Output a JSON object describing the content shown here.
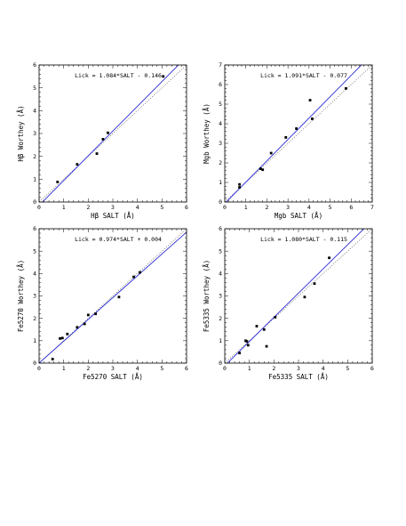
{
  "chart_data": [
    {
      "type": "scatter",
      "title": "",
      "xlabel": "Hβ SALT (Å)",
      "ylabel": "Hβ Worthey (Å)",
      "annotation": "Lick = 1.084*SALT - 0.146",
      "fit": {
        "slope": 1.084,
        "intercept": -0.146
      },
      "xlim": [
        0,
        6
      ],
      "ylim": [
        0,
        6
      ],
      "xticks": [
        0,
        1,
        2,
        3,
        4,
        5,
        6
      ],
      "yticks": [
        0,
        1,
        2,
        3,
        4,
        5,
        6
      ],
      "grid": false,
      "points": {
        "x": [
          0.75,
          1.55,
          2.35,
          2.6,
          2.8,
          5.05
        ],
        "y": [
          0.88,
          1.65,
          2.12,
          2.75,
          3.03,
          5.5
        ]
      }
    },
    {
      "type": "scatter",
      "title": "",
      "xlabel": "Mgb SALT (Å)",
      "ylabel": "Mgb Worthey (Å)",
      "annotation": "Lick = 1.091*SALT - 0.077",
      "fit": {
        "slope": 1.091,
        "intercept": -0.077
      },
      "xlim": [
        0,
        7
      ],
      "ylim": [
        0,
        7
      ],
      "xticks": [
        0,
        1,
        2,
        3,
        4,
        5,
        6,
        7
      ],
      "yticks": [
        0,
        1,
        2,
        3,
        4,
        5,
        6,
        7
      ],
      "grid": false,
      "points": {
        "x": [
          0.7,
          0.7,
          1.7,
          1.8,
          2.2,
          2.9,
          3.4,
          4.05,
          4.15,
          5.75
        ],
        "y": [
          0.9,
          0.75,
          1.7,
          1.65,
          2.5,
          3.3,
          3.75,
          5.2,
          4.25,
          5.8
        ]
      }
    },
    {
      "type": "scatter",
      "title": "",
      "xlabel": "Fe5270 SALT (Å)",
      "ylabel": "Fe5270 Worthey (Å)",
      "annotation": "Lick = 0.974*SALT + 0.004",
      "fit": {
        "slope": 0.974,
        "intercept": 0.004
      },
      "xlim": [
        0,
        6
      ],
      "ylim": [
        0,
        6
      ],
      "xticks": [
        0,
        1,
        2,
        3,
        4,
        5,
        6
      ],
      "yticks": [
        0,
        1,
        2,
        3,
        4,
        5,
        6
      ],
      "grid": false,
      "points": {
        "x": [
          0.55,
          0.85,
          0.95,
          1.15,
          1.55,
          1.85,
          2.0,
          2.3,
          3.25,
          3.85,
          4.1
        ],
        "y": [
          0.18,
          1.1,
          1.12,
          1.3,
          1.6,
          1.75,
          2.15,
          2.2,
          2.95,
          3.85,
          4.05
        ]
      }
    },
    {
      "type": "scatter",
      "title": "",
      "xlabel": "Fe5335 SALT (Å)",
      "ylabel": "Fe5335 Worthey (Å)",
      "annotation": "Lick = 1.080*SALT - 0.115",
      "fit": {
        "slope": 1.08,
        "intercept": -0.115
      },
      "xlim": [
        0,
        6
      ],
      "ylim": [
        0,
        6
      ],
      "xticks": [
        0,
        1,
        2,
        3,
        4,
        5,
        6
      ],
      "yticks": [
        0,
        1,
        2,
        3,
        4,
        5,
        6
      ],
      "grid": false,
      "points": {
        "x": [
          0.6,
          0.85,
          0.9,
          0.95,
          1.3,
          1.6,
          1.7,
          2.05,
          3.25,
          3.65,
          4.25
        ],
        "y": [
          0.45,
          1.0,
          0.97,
          0.8,
          1.65,
          1.5,
          0.75,
          2.05,
          2.95,
          3.55,
          4.7
        ]
      }
    }
  ]
}
